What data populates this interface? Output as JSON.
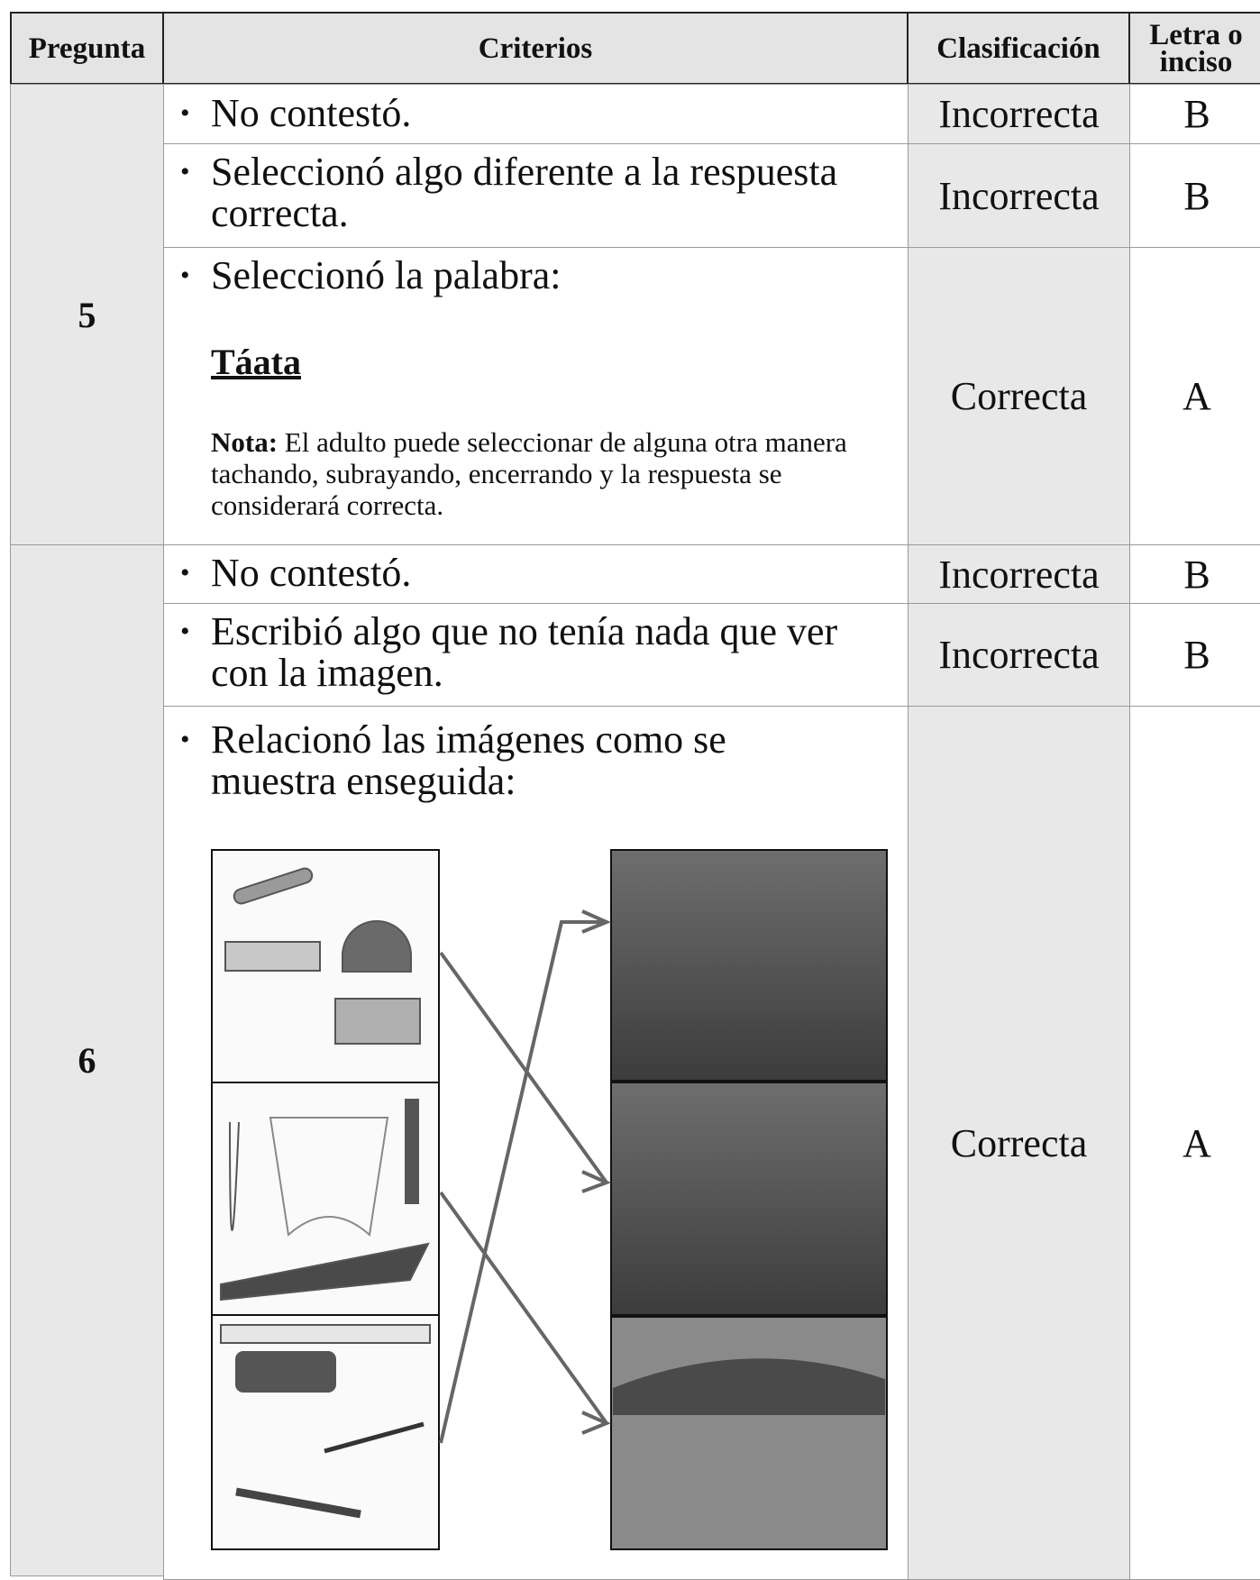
{
  "table": {
    "header": [
      "Pregunta",
      "Criterios",
      "Clasificación",
      "Letra o inciso"
    ],
    "groups": [
      {
        "question": "5",
        "rows": [
          {
            "criteria": "No contestó.",
            "classification": "Incorrecta",
            "letter": "B"
          },
          {
            "criteria": "Seleccionó algo diferente a la respuesta correcta.",
            "classification": "Incorrecta",
            "letter": "B"
          },
          {
            "criteria": "Seleccionó la palabra:",
            "word": "Táata",
            "note_label": "Nota:",
            "note": "El adulto puede seleccionar de alguna otra manera tachando, subrayando, encerrando y la respuesta se considerará correcta.",
            "classification": "Correcta",
            "letter": "A"
          }
        ]
      },
      {
        "question": "6",
        "rows": [
          {
            "criteria": "No contestó.",
            "classification": "Incorrecta",
            "letter": "B"
          },
          {
            "criteria": "Escribió algo que no tenía nada que ver con la imagen.",
            "classification": "Incorrecta",
            "letter": "B"
          },
          {
            "criteria": "Relacionó las imágenes como se muestra enseguida:",
            "classification": "Correcta",
            "letter": "A"
          }
        ]
      }
    ]
  }
}
